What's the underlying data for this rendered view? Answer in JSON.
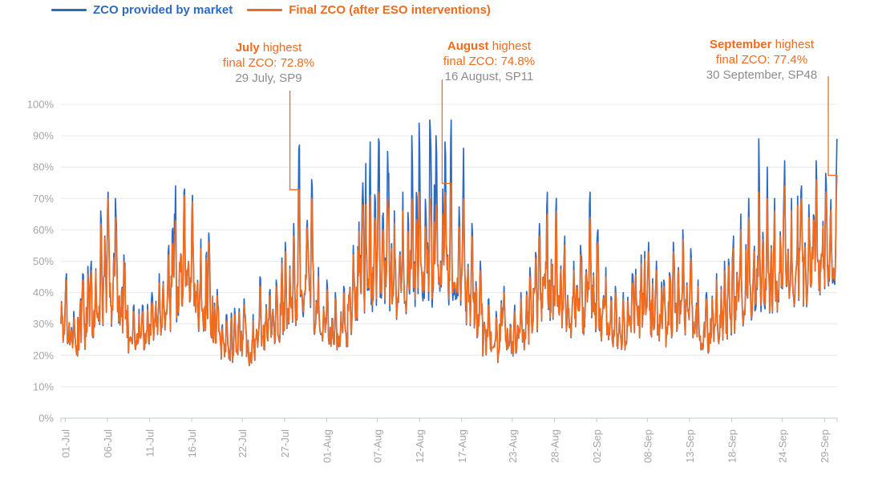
{
  "legend": {
    "items": [
      {
        "label": "ZCO provided by market",
        "color": "#2C6BC4"
      },
      {
        "label": "Final ZCO (after ESO interventions)",
        "color": "#F26A1C"
      }
    ]
  },
  "annotations": [
    {
      "month": "July",
      "suffix": " highest",
      "line2": "final ZCO: 72.8%",
      "line3": "29 July, SP9"
    },
    {
      "month": "August",
      "suffix": " highest",
      "line2": "final ZCO: 74.8%",
      "line3": "16 August, SP11"
    },
    {
      "month": "September",
      "suffix": " highest",
      "line2": "final ZCO: 77.4%",
      "line3": "30 September, SP48"
    }
  ],
  "chart_data": {
    "type": "line",
    "title": "",
    "xlabel": "",
    "ylabel": "",
    "ylim": [
      0,
      100
    ],
    "grid": true,
    "legend_position": "top",
    "resolution": "half-hourly settlement periods, 01-Jul to 30-Sep (92 days)",
    "y_ticks": [
      "0%",
      "10%",
      "20%",
      "30%",
      "40%",
      "50%",
      "60%",
      "70%",
      "80%",
      "90%",
      "100%"
    ],
    "x_ticks": [
      {
        "label": "01-Jul",
        "day": 0
      },
      {
        "label": "06-Jul",
        "day": 5
      },
      {
        "label": "11-Jul",
        "day": 10
      },
      {
        "label": "16-Jul",
        "day": 15
      },
      {
        "label": "22-Jul",
        "day": 21
      },
      {
        "label": "27-Jul",
        "day": 26
      },
      {
        "label": "01-Aug",
        "day": 31
      },
      {
        "label": "07-Aug",
        "day": 37
      },
      {
        "label": "12-Aug",
        "day": 42
      },
      {
        "label": "17-Aug",
        "day": 47
      },
      {
        "label": "23-Aug",
        "day": 53
      },
      {
        "label": "28-Aug",
        "day": 58
      },
      {
        "label": "02-Sep",
        "day": 63
      },
      {
        "label": "08-Sep",
        "day": 69
      },
      {
        "label": "13-Sep",
        "day": 74
      },
      {
        "label": "18-Sep",
        "day": 79
      },
      {
        "label": "24-Sep",
        "day": 85
      },
      {
        "label": "29-Sep",
        "day": 90
      }
    ],
    "series": [
      {
        "name": "ZCO provided by market",
        "color": "#2C6BC4"
      },
      {
        "name": "Final ZCO (after ESO interventions)",
        "color": "#F26A1C"
      }
    ],
    "days": {
      "n_days": 92,
      "start": "01-Jul",
      "end": "30-Sep",
      "note": "daily envelope read from chart: peak of blue series, peak of orange series, shared daily low (%)",
      "blue_peak": [
        46,
        34,
        46,
        50,
        66,
        72,
        70,
        52,
        36,
        36,
        40,
        46,
        55,
        74,
        73,
        71,
        57,
        59,
        41,
        33,
        35,
        38,
        33,
        45,
        41,
        44,
        56,
        62,
        87,
        76,
        48,
        44,
        40,
        42,
        55,
        75,
        88,
        89,
        85,
        66,
        72,
        90,
        94,
        95,
        90,
        88,
        95,
        86,
        62,
        50,
        38,
        34,
        42,
        36,
        40,
        48,
        62,
        72,
        70,
        58,
        50,
        55,
        72,
        60,
        48,
        42,
        40,
        46,
        52,
        56,
        50,
        44,
        56,
        60,
        54,
        44,
        40,
        46,
        50,
        58,
        65,
        70,
        89,
        80,
        70,
        82,
        70,
        74,
        68,
        82,
        78,
        89
      ],
      "orange_peak": [
        44,
        32,
        44,
        47,
        62,
        70,
        64,
        50,
        34,
        34,
        37,
        43,
        52,
        63,
        71,
        69,
        54,
        56,
        39,
        31,
        33,
        36,
        31,
        42,
        39,
        42,
        53,
        58,
        72.8,
        70,
        45,
        41,
        38,
        40,
        52,
        68,
        71,
        72,
        70,
        62,
        66,
        70,
        72,
        70,
        68,
        72,
        74.8,
        70,
        58,
        47,
        36,
        32,
        40,
        34,
        38,
        45,
        58,
        65,
        66,
        55,
        47,
        52,
        64,
        56,
        45,
        40,
        38,
        43,
        49,
        53,
        47,
        42,
        53,
        57,
        51,
        42,
        38,
        44,
        47,
        54,
        60,
        64,
        72,
        70,
        66,
        74,
        66,
        70,
        64,
        76,
        72,
        77.4
      ],
      "low": [
        24,
        20,
        22,
        26,
        30,
        34,
        30,
        26,
        21,
        22,
        24,
        26,
        28,
        32,
        36,
        34,
        28,
        26,
        22,
        19,
        18,
        20,
        17,
        23,
        22,
        24,
        27,
        30,
        34,
        36,
        26,
        24,
        22,
        23,
        27,
        32,
        36,
        38,
        36,
        32,
        34,
        38,
        40,
        40,
        38,
        38,
        40,
        36,
        30,
        26,
        20,
        18,
        22,
        20,
        22,
        24,
        28,
        32,
        32,
        28,
        26,
        27,
        30,
        28,
        25,
        23,
        22,
        24,
        26,
        27,
        25,
        23,
        26,
        28,
        26,
        22,
        21,
        24,
        25,
        27,
        30,
        32,
        36,
        36,
        34,
        38,
        36,
        38,
        36,
        40,
        42,
        44
      ]
    },
    "highlights": [
      {
        "day_index": 28,
        "sp": 9,
        "value": 72.8,
        "date_label": "29 July, SP9"
      },
      {
        "day_index": 46,
        "sp": 11,
        "value": 74.8,
        "date_label": "16 August, SP11"
      },
      {
        "day_index": 91,
        "sp": 48,
        "value": 77.4,
        "date_label": "30 September, SP48"
      }
    ]
  }
}
